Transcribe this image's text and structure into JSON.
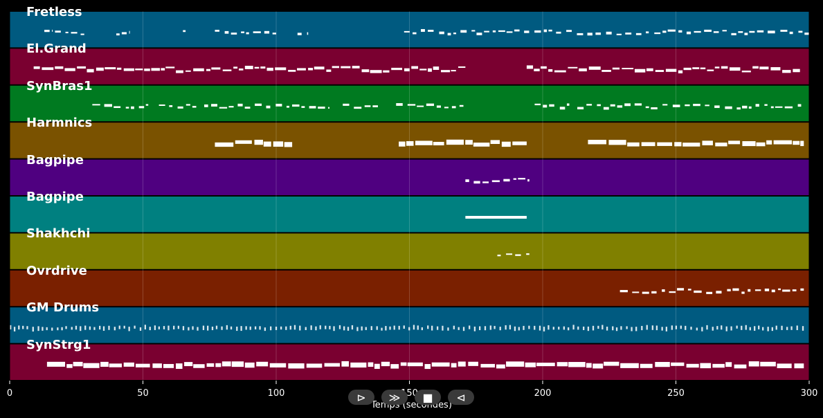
{
  "window": {
    "xlabel": "Temps (secondes)"
  },
  "axis": {
    "xlim": [
      0,
      300
    ],
    "ticks": [
      0,
      50,
      100,
      150,
      200,
      250,
      300
    ],
    "grid": true
  },
  "tracks": [
    {
      "name": "Fretless",
      "color": "#005a80",
      "notes": [
        [
          13,
          16
        ],
        [
          17,
          22
        ],
        [
          23,
          28
        ],
        [
          40,
          45
        ],
        [
          65,
          66
        ],
        [
          77,
          100
        ],
        [
          108,
          112
        ],
        [
          148,
          300
        ]
      ],
      "style": "sparse"
    },
    {
      "name": "El.Grand",
      "color": "#7a0030",
      "notes": [
        [
          9,
          171
        ],
        [
          194,
          297
        ]
      ],
      "style": "dense"
    },
    {
      "name": "SynBras1",
      "color": "#007a20",
      "notes": [
        [
          31,
          52
        ],
        [
          56,
          70
        ],
        [
          73,
          120
        ],
        [
          125,
          140
        ],
        [
          145,
          171
        ],
        [
          197,
          210
        ],
        [
          213,
          297
        ]
      ],
      "style": "sparse"
    },
    {
      "name": "Harmnics",
      "color": "#7a5200",
      "notes": [
        [
          77,
          106
        ],
        [
          146,
          194
        ],
        [
          217,
          298
        ]
      ],
      "style": "blocks"
    },
    {
      "name": "Bagpipe",
      "color": "#4f0080",
      "notes": [
        [
          171,
          195
        ]
      ],
      "style": "sparse"
    },
    {
      "name": "Bagpipe",
      "color": "#008080",
      "notes": [
        [
          171,
          194
        ]
      ],
      "style": "bar"
    },
    {
      "name": "Shakhchi",
      "color": "#808000",
      "notes": [
        [
          183,
          195
        ]
      ],
      "style": "sparse"
    },
    {
      "name": "Ovrdrive",
      "color": "#7a2000",
      "notes": [
        [
          229,
          298
        ]
      ],
      "style": "sparse"
    },
    {
      "name": "GM Drums",
      "color": "#005a80",
      "notes": [
        [
          0,
          298
        ]
      ],
      "style": "drums"
    },
    {
      "name": "SynStrg1",
      "color": "#7a0030",
      "notes": [
        [
          14,
          298
        ]
      ],
      "style": "blocks"
    }
  ],
  "controls": {
    "play_label": "⊳",
    "forward_label": "≫",
    "stop_label": "■",
    "back_label": "⊲"
  }
}
